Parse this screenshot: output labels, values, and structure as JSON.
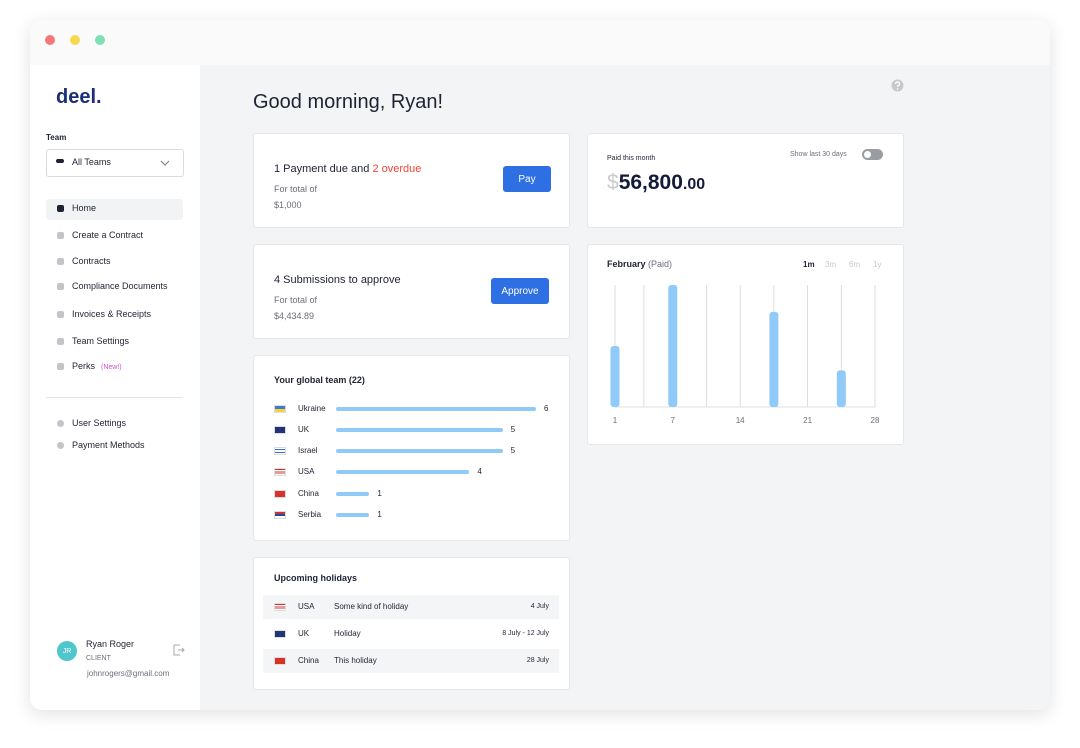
{
  "sidebar": {
    "logo": "deel.",
    "team_label": "Team",
    "team_select": "All Teams",
    "nav": [
      "Home",
      "Create a Contract",
      "Contracts",
      "Compliance Documents",
      "Invoices & Receipts",
      "Team Settings",
      "Perks"
    ],
    "perks_badge": "(New!)",
    "secondary_nav": [
      "User Settings",
      "Payment Methods"
    ],
    "user": {
      "initials": "JR",
      "name": "Ryan Roger",
      "role": "CLIENT",
      "email": "johnrogers@gmail.com"
    }
  },
  "greeting": "Good morning, Ryan!",
  "payment_card": {
    "text": "1 Payment due and",
    "overdue": "2 overdue",
    "total_label": "For total of",
    "total": "$1,000",
    "button": "Pay"
  },
  "submissions_card": {
    "text": "4 Submissions to approve",
    "total_label": "For total of",
    "total": "$4,434.89",
    "button": "Approve"
  },
  "paid_card": {
    "label": "Paid this month",
    "toggle_label": "Show last 30 days",
    "currency": "$",
    "amount": "56,800",
    "cents": ".00"
  },
  "chart_data": {
    "type": "bar",
    "title": "February",
    "subtitle": "(Paid)",
    "ranges": [
      "1m",
      "3m",
      "6m",
      "1y"
    ],
    "x": [
      1,
      7,
      17.5,
      24.5
    ],
    "values": [
      50,
      100,
      78,
      30
    ],
    "xlim": [
      1,
      28
    ],
    "xticks": [
      1,
      7,
      14,
      21,
      28
    ],
    "ylim": [
      0,
      100
    ],
    "color": "#90caf9",
    "grid": true
  },
  "global_team": {
    "title": "Your global team (22)",
    "xlim": [
      0,
      6
    ],
    "color": "#90caf9",
    "rows": [
      {
        "country": "Ukraine",
        "count": 6
      },
      {
        "country": "UK",
        "count": 5
      },
      {
        "country": "Israel",
        "count": 5
      },
      {
        "country": "USA",
        "count": 4
      },
      {
        "country": "China",
        "count": 1
      },
      {
        "country": "Serbia",
        "count": 1
      }
    ]
  },
  "holidays": {
    "title": "Upcoming holidays",
    "rows": [
      {
        "country": "USA",
        "name": "Some kind of holiday",
        "date": "4 July"
      },
      {
        "country": "UK",
        "name": "Holiday",
        "date": "8 July - 12 July"
      },
      {
        "country": "China",
        "name": "This holiday",
        "date": "28 July"
      }
    ]
  }
}
